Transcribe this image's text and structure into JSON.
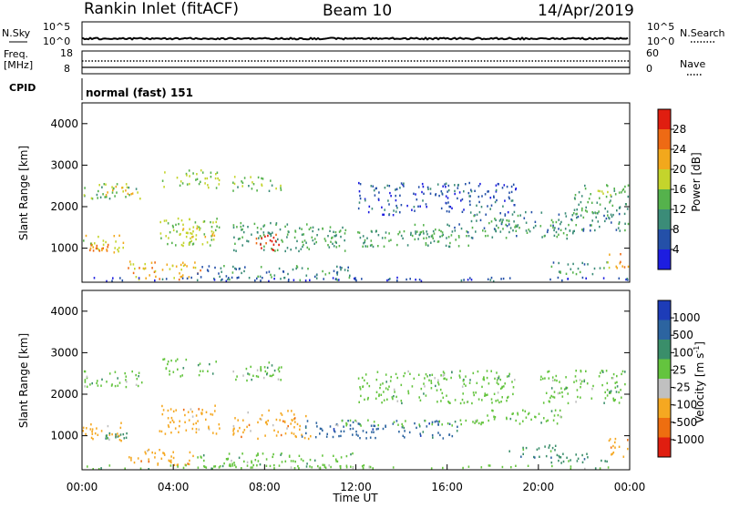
{
  "header": {
    "station": "Rankin Inlet (fitACF)",
    "beam": "Beam 10",
    "date": "14/Apr/2019"
  },
  "top_panels": {
    "nsky_label": "N.Sky",
    "nsky_ticks": [
      "10^5",
      "10^0"
    ],
    "nsearch_label": "N.Search",
    "nsearch_ticks": [
      "10^5",
      "10^0"
    ],
    "freq_label_1": "Freq.",
    "freq_label_2": "[MHz]",
    "freq_ticks": [
      "18",
      "8"
    ],
    "nave_label": "Nave",
    "nave_ticks": [
      "60",
      "0"
    ],
    "cpid_label": "CPID",
    "cpid_value": "normal (fast) 151"
  },
  "colors": {
    "power": [
      "#1d1de0",
      "#2450a8",
      "#3b8c78",
      "#55b24c",
      "#c4d42c",
      "#f2a81c",
      "#ee6a14",
      "#e01e10"
    ],
    "velocity": [
      "#1d3cb8",
      "#2c64a0",
      "#3a8e6a",
      "#64c43e",
      "#c0c0c0",
      "#f5a821",
      "#ee6e10",
      "#e01e10"
    ],
    "velocity_fixed_last": "#e82014"
  },
  "chart_data": [
    {
      "type": "heatmap",
      "title": "Power",
      "ylabel": "Slant Range [km]",
      "yticks": [
        "1000",
        "2000",
        "3000",
        "4000"
      ],
      "ylim": [
        180,
        4500
      ],
      "xlim": [
        0,
        24
      ],
      "colorbar": {
        "label": "Power [dB]",
        "ticks": [
          "28",
          "24",
          "20",
          "16",
          "12",
          "8",
          "4"
        ],
        "range": [
          0,
          32
        ]
      },
      "regions": [
        {
          "t": [
            0.0,
            2.6
          ],
          "r": [
            2200,
            2600
          ],
          "v": 14
        },
        {
          "t": [
            1.0,
            2.4
          ],
          "r": [
            2300,
            2600
          ],
          "v": 20
        },
        {
          "t": [
            3.5,
            6.0
          ],
          "r": [
            2450,
            2900
          ],
          "v": 16
        },
        {
          "t": [
            6.5,
            8.8
          ],
          "r": [
            2400,
            2750
          ],
          "v": 14
        },
        {
          "t": [
            0.0,
            1.8
          ],
          "r": [
            900,
            1350
          ],
          "v": 18
        },
        {
          "t": [
            0.3,
            1.2
          ],
          "r": [
            950,
            1150
          ],
          "v": 24
        },
        {
          "t": [
            3.3,
            6.0
          ],
          "r": [
            1050,
            1750
          ],
          "v": 16
        },
        {
          "t": [
            4.3,
            5.8
          ],
          "r": [
            1200,
            1650
          ],
          "v": 20
        },
        {
          "t": [
            6.6,
            10.0
          ],
          "r": [
            950,
            1650
          ],
          "v": 12
        },
        {
          "t": [
            7.6,
            8.6
          ],
          "r": [
            950,
            1350
          ],
          "v": 30
        },
        {
          "t": [
            9.6,
            11.6
          ],
          "r": [
            950,
            1550
          ],
          "v": 12
        },
        {
          "t": [
            11.0,
            17.0
          ],
          "r": [
            1050,
            1450
          ],
          "v": 12
        },
        {
          "t": [
            14.0,
            21.5
          ],
          "r": [
            1250,
            1600
          ],
          "v": 11
        },
        {
          "t": [
            17.0,
            24.0
          ],
          "r": [
            1400,
            1900
          ],
          "v": 10
        },
        {
          "t": [
            21.5,
            24.0
          ],
          "r": [
            1800,
            2550
          ],
          "v": 12
        },
        {
          "t": [
            22.0,
            24.0
          ],
          "r": [
            2300,
            2550
          ],
          "v": 16
        },
        {
          "t": [
            12.0,
            19.0
          ],
          "r": [
            1800,
            2600
          ],
          "v": 6
        },
        {
          "t": [
            2.0,
            5.2
          ],
          "r": [
            250,
            700
          ],
          "v": 22
        },
        {
          "t": [
            5.0,
            12.0
          ],
          "r": [
            230,
            600
          ],
          "v": 10
        },
        {
          "t": [
            20.5,
            23.0
          ],
          "r": [
            400,
            700
          ],
          "v": 11
        },
        {
          "t": [
            23.0,
            24.0
          ],
          "r": [
            500,
            900
          ],
          "v": 22
        },
        {
          "t": [
            0.0,
            24.0
          ],
          "r": [
            190,
            320
          ],
          "v": 5
        }
      ]
    },
    {
      "type": "heatmap",
      "title": "Velocity",
      "ylabel": "Slant Range [km]",
      "yticks": [
        "1000",
        "2000",
        "3000",
        "4000"
      ],
      "ylim": [
        180,
        4500
      ],
      "xlim": [
        0,
        24
      ],
      "xticks": [
        "00:00",
        "04:00",
        "08:00",
        "12:00",
        "16:00",
        "20:00",
        "00:00"
      ],
      "xlabel": "Time UT",
      "colorbar": {
        "label": "Velocity [m s",
        "label_sup": "-1",
        "label_end": "]",
        "ticks": [
          "1000",
          "500",
          "100",
          "25",
          "-25",
          "-100",
          "-500",
          "-1000"
        ]
      },
      "regions": [
        {
          "t": [
            0.0,
            2.6
          ],
          "r": [
            2200,
            2600
          ],
          "v": 4
        },
        {
          "t": [
            3.5,
            6.0
          ],
          "r": [
            2450,
            2900
          ],
          "v": 4
        },
        {
          "t": [
            6.5,
            9.0
          ],
          "r": [
            2350,
            2800
          ],
          "v": 4
        },
        {
          "t": [
            12.0,
            19.0
          ],
          "r": [
            1800,
            2600
          ],
          "v": 4
        },
        {
          "t": [
            20.0,
            24.0
          ],
          "r": [
            1800,
            2600
          ],
          "v": 4
        },
        {
          "t": [
            0.0,
            1.8
          ],
          "r": [
            900,
            1350
          ],
          "v": 2
        },
        {
          "t": [
            1.0,
            2.0
          ],
          "r": [
            950,
            1100
          ],
          "v": 5
        },
        {
          "t": [
            3.3,
            6.0
          ],
          "r": [
            1050,
            1750
          ],
          "v": 2
        },
        {
          "t": [
            6.6,
            10.0
          ],
          "r": [
            950,
            1650
          ],
          "v": 2
        },
        {
          "t": [
            9.6,
            12.0
          ],
          "r": [
            950,
            1450
          ],
          "v": 6
        },
        {
          "t": [
            12.0,
            16.5
          ],
          "r": [
            950,
            1400
          ],
          "v": 6
        },
        {
          "t": [
            11.0,
            17.5
          ],
          "r": [
            1250,
            1400
          ],
          "v": 4
        },
        {
          "t": [
            17.0,
            21.0
          ],
          "r": [
            1300,
            1650
          ],
          "v": 4
        },
        {
          "t": [
            18.5,
            21.0
          ],
          "r": [
            500,
            800
          ],
          "v": 5
        },
        {
          "t": [
            20.5,
            23.0
          ],
          "r": [
            350,
            600
          ],
          "v": 5
        },
        {
          "t": [
            23.0,
            24.0
          ],
          "r": [
            500,
            1000
          ],
          "v": 2
        },
        {
          "t": [
            2.0,
            5.2
          ],
          "r": [
            300,
            700
          ],
          "v": 2
        },
        {
          "t": [
            5.0,
            12.0
          ],
          "r": [
            230,
            600
          ],
          "v": 4
        },
        {
          "t": [
            0.0,
            24.0
          ],
          "r": [
            190,
            320
          ],
          "v": 4
        }
      ]
    }
  ]
}
